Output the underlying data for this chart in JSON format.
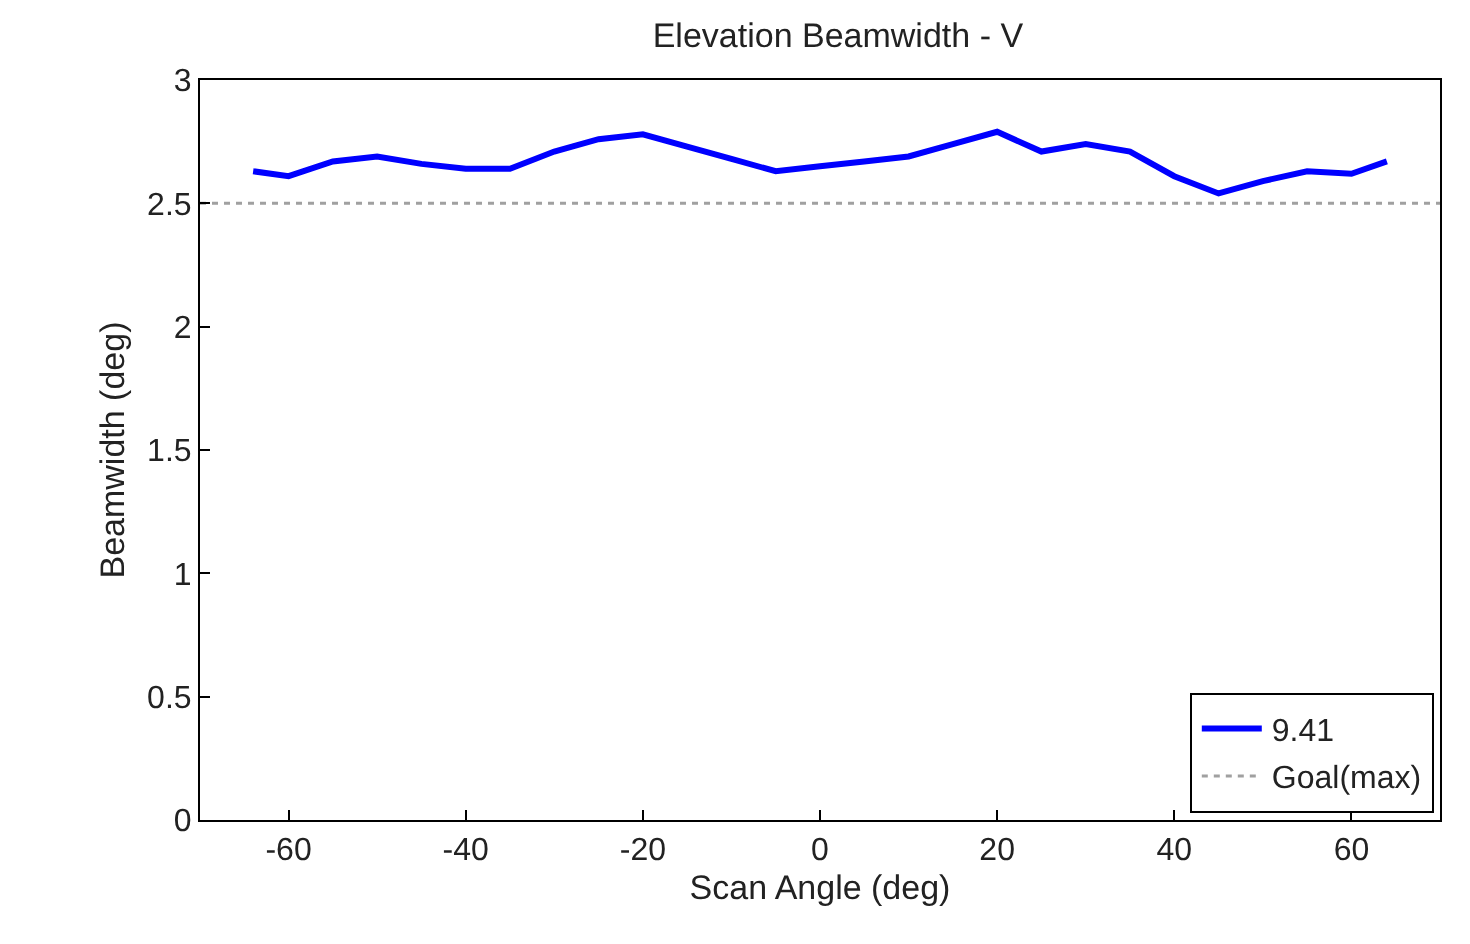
{
  "chart_data": {
    "type": "line",
    "title": "Elevation Beamwidth - V",
    "xlabel": "Scan Angle (deg)",
    "ylabel": "Beamwidth (deg)",
    "x": [
      -64,
      -60,
      -55,
      -50,
      -45,
      -40,
      -35,
      -30,
      -25,
      -20,
      -15,
      -10,
      -5,
      0,
      5,
      10,
      15,
      20,
      25,
      30,
      35,
      40,
      45,
      50,
      55,
      60,
      64
    ],
    "series": [
      {
        "name": "9.41",
        "color": "#0000ff",
        "values": [
          2.63,
          2.61,
          2.67,
          2.69,
          2.66,
          2.64,
          2.64,
          2.71,
          2.76,
          2.78,
          2.73,
          2.68,
          2.63,
          2.65,
          2.67,
          2.69,
          2.74,
          2.79,
          2.71,
          2.74,
          2.71,
          2.61,
          2.54,
          2.59,
          2.63,
          2.62,
          2.67
        ]
      }
    ],
    "ref_lines": [
      {
        "axis": "y",
        "value": 2.5,
        "label": "Goal(max)",
        "color": "#a0a0a0",
        "line_style": "dotted"
      }
    ],
    "xlim": [
      -70,
      70
    ],
    "xticks": [
      -60,
      -40,
      -20,
      0,
      20,
      40,
      60
    ],
    "ylim": [
      0,
      3
    ],
    "yticks": [
      0,
      0.5,
      1,
      1.5,
      2,
      2.5,
      3
    ],
    "grid": false,
    "legend": "bottom right",
    "marker": "none",
    "line_style": "solid"
  }
}
